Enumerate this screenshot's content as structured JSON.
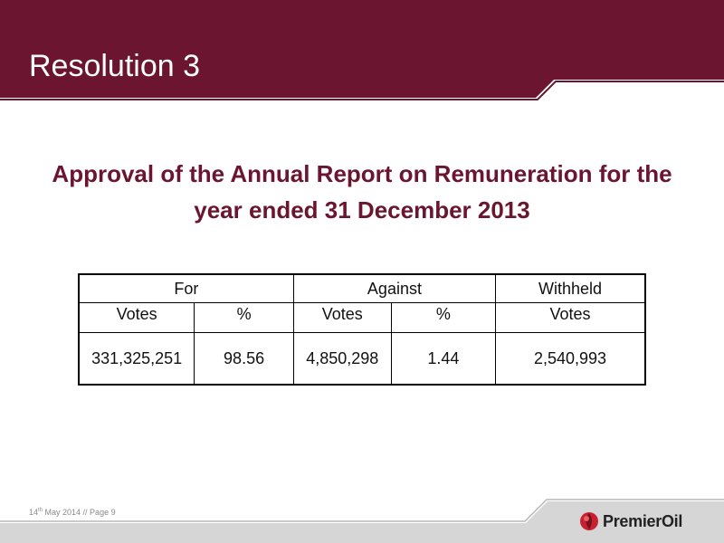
{
  "slide": {
    "title": "Resolution 3",
    "headline_line1": "Approval of the Annual Report on Remuneration for the",
    "headline_line2": "year ended 31 December 2013"
  },
  "table": {
    "groups": [
      "For",
      "Against",
      "Withheld"
    ],
    "subheaders": [
      "Votes",
      "%",
      "Votes",
      "%",
      "Votes"
    ],
    "values": [
      "331,325,251",
      "98.56",
      "4,850,298",
      "1.44",
      "2,540,993"
    ]
  },
  "footer": {
    "day": "14",
    "day_suffix": "th",
    "rest": " May 2014 // Page 9"
  },
  "logo": {
    "text": "PremierOil"
  },
  "colors": {
    "brand": "#6b1530",
    "band": "#cccccc"
  }
}
